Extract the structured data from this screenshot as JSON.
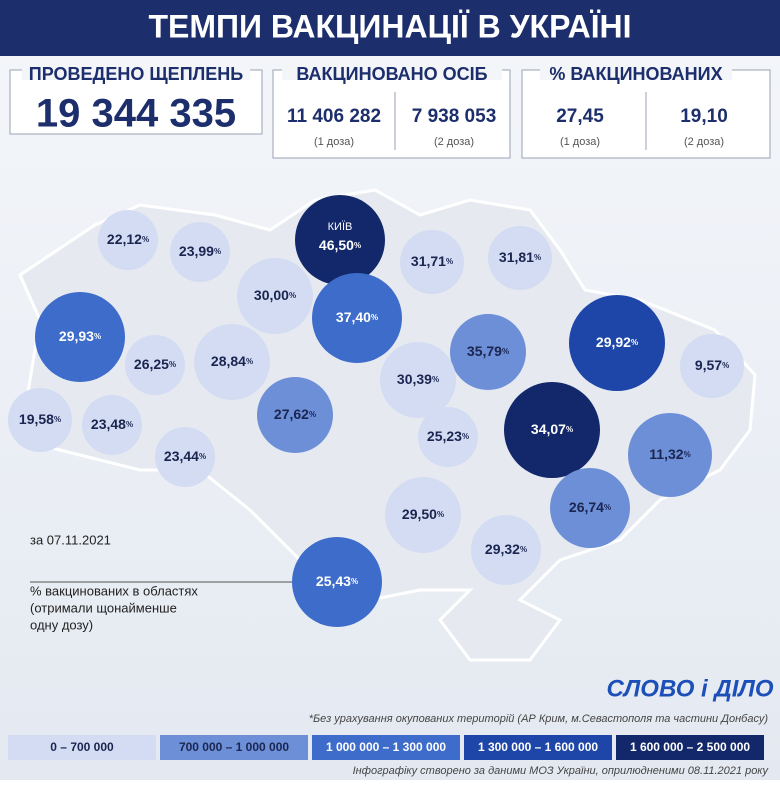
{
  "header": {
    "title": "ТЕМПИ ВАКЦИНАЦІЇ В УКРАЇНІ"
  },
  "stats": {
    "total": {
      "label": "ПРОВЕДЕНО ЩЕПЛЕНЬ",
      "value": "19 344 335"
    },
    "people": {
      "label": "ВАКЦИНОВАНО ОСІБ",
      "items": [
        {
          "value": "11 406 282",
          "note": "(1 доза)"
        },
        {
          "value": "7 938 053",
          "note": "(2 доза)"
        }
      ]
    },
    "percent": {
      "label": "% ВАКЦИНОВАНИХ",
      "items": [
        {
          "value": "27,45",
          "note": "(1 доза)"
        },
        {
          "value": "19,10",
          "note": "(2 доза)"
        }
      ]
    }
  },
  "date": "за 07.11.2021",
  "map_note": [
    "% вакцинованих в областях",
    "(отримали щонайменше",
    "одну дозу)"
  ],
  "unit": "%",
  "regions": [
    {
      "value": "22,12",
      "tier": 0
    },
    {
      "value": "23,99",
      "tier": 0
    },
    {
      "name": "КИЇВ",
      "value": "46,50",
      "tier": 4
    },
    {
      "value": "31,71",
      "tier": 0
    },
    {
      "value": "31,81",
      "tier": 0
    },
    {
      "value": "30,00",
      "tier": 0
    },
    {
      "value": "29,93",
      "tier": 2
    },
    {
      "value": "37,40",
      "tier": 2
    },
    {
      "value": "35,79",
      "tier": 1
    },
    {
      "value": "29,92",
      "tier": 3
    },
    {
      "value": "26,25",
      "tier": 0
    },
    {
      "value": "28,84",
      "tier": 0
    },
    {
      "value": "9,57",
      "tier": 0
    },
    {
      "value": "30,39",
      "tier": 0
    },
    {
      "value": "19,58",
      "tier": 0
    },
    {
      "value": "23,48",
      "tier": 0
    },
    {
      "value": "27,62",
      "tier": 1
    },
    {
      "value": "25,23",
      "tier": 0
    },
    {
      "value": "34,07",
      "tier": 4
    },
    {
      "value": "11,32",
      "tier": 1
    },
    {
      "value": "23,44",
      "tier": 0
    },
    {
      "value": "29,50",
      "tier": 0
    },
    {
      "value": "26,74",
      "tier": 1
    },
    {
      "value": "29,32",
      "tier": 0
    },
    {
      "value": "25,43",
      "tier": 2
    }
  ],
  "logo": "СЛОВО і ДІЛО",
  "footnote": "*Без урахування окупованих територій (АР Крим, м.Севастополя та частини Донбасу)",
  "legend": [
    {
      "label": "0 – 700 000",
      "color": "#d3dcf2",
      "text": "#1a2550"
    },
    {
      "label": "700 000 – 1 000 000",
      "color": "#6d8fd8",
      "text": "#1a2550"
    },
    {
      "label": "1 000 000 – 1 300 000",
      "color": "#3e6ccb",
      "text": "#ffffff"
    },
    {
      "label": "1 300 000 – 1 600 000",
      "color": "#1e46a8",
      "text": "#ffffff"
    },
    {
      "label": "1 600 000 – 2 500 000",
      "color": "#13286a",
      "text": "#ffffff"
    }
  ],
  "source": "Інфографіку створено за даними МОЗ України, оприлюдненими 08.11.2021 року"
}
